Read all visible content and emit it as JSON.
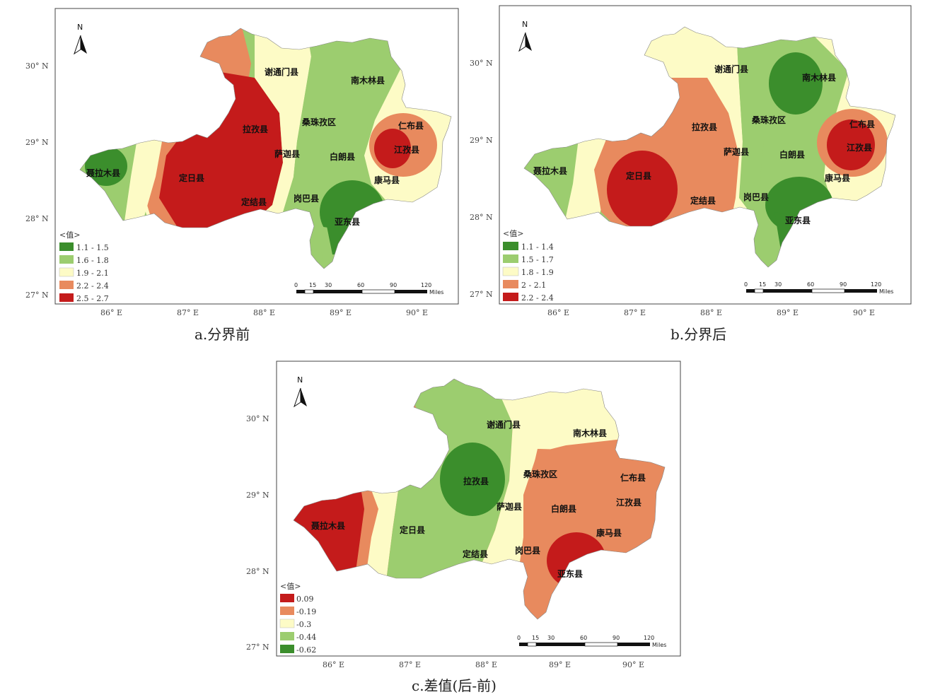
{
  "maps": [
    {
      "id": "a",
      "caption": "a.分界前",
      "lat_labels": [
        "30° N",
        "29° N",
        "28° N",
        "27° N"
      ],
      "lon_labels": [
        "86° E",
        "87° E",
        "88° E",
        "89° E",
        "90° E"
      ],
      "legend_title": "<值>",
      "legend": [
        {
          "label": "1.1 - 1.5",
          "color": "#3b8e2c"
        },
        {
          "label": "1.6 - 1.8",
          "color": "#9ccd6f"
        },
        {
          "label": "1.9 - 2.1",
          "color": "#fdfbc6"
        },
        {
          "label": "2.2 - 2.4",
          "color": "#e88a5e"
        },
        {
          "label": "2.5 - 2.7",
          "color": "#c41b1b"
        }
      ],
      "places": [
        "谢通门县",
        "南木林县",
        "拉孜县",
        "桑珠孜区",
        "仁布县",
        "江孜县",
        "聂拉木县",
        "萨迦县",
        "白朗县",
        "定日县",
        "康马县",
        "岗巴县",
        "定结县",
        "亚东县"
      ]
    },
    {
      "id": "b",
      "caption": "b.分界后",
      "lat_labels": [
        "30° N",
        "29° N",
        "28° N",
        "27° N"
      ],
      "lon_labels": [
        "86° E",
        "87° E",
        "88° E",
        "89° E",
        "90° E"
      ],
      "legend_title": "<值>",
      "legend": [
        {
          "label": "1.1 - 1.4",
          "color": "#3b8e2c"
        },
        {
          "label": "1.5 - 1.7",
          "color": "#9ccd6f"
        },
        {
          "label": "1.8 - 1.9",
          "color": "#fdfbc6"
        },
        {
          "label": "2 - 2.1",
          "color": "#e88a5e"
        },
        {
          "label": "2.2 - 2.4",
          "color": "#c41b1b"
        }
      ],
      "places": [
        "谢通门县",
        "南木林县",
        "拉孜县",
        "桑珠孜区",
        "仁布县",
        "江孜县",
        "聂拉木县",
        "萨迦县",
        "白朗县",
        "定日县",
        "康马县",
        "岗巴县",
        "定结县",
        "亚东县"
      ]
    },
    {
      "id": "c",
      "caption": "c.差值(后-前)",
      "lat_labels": [
        "30° N",
        "29° N",
        "28° N",
        "27° N"
      ],
      "lon_labels": [
        "86° E",
        "87° E",
        "88° E",
        "89° E",
        "90° E"
      ],
      "legend_title": "<值>",
      "legend": [
        {
          "label": "0.09",
          "color": "#c41b1b"
        },
        {
          "label": "-0.19",
          "color": "#e88a5e"
        },
        {
          "label": "-0.3",
          "color": "#fdfbc6"
        },
        {
          "label": "-0.44",
          "color": "#9ccd6f"
        },
        {
          "label": "-0.62",
          "color": "#3b8e2c"
        }
      ],
      "places": [
        "谢通门县",
        "南木林县",
        "拉孜县",
        "桑珠孜区",
        "仁布县",
        "江孜县",
        "聂拉木县",
        "萨迦县",
        "白朗县",
        "定日县",
        "康马县",
        "岗巴县",
        "定结县",
        "亚东县"
      ]
    }
  ],
  "scalebar": {
    "ticks": [
      "0",
      "15",
      "30",
      "60",
      "90",
      "120"
    ],
    "unit": "Miles"
  },
  "north": "N",
  "colors": {
    "c1": "#3b8e2c",
    "c2": "#9ccd6f",
    "c3": "#fdfbc6",
    "c4": "#e88a5e",
    "c5": "#c41b1b"
  }
}
